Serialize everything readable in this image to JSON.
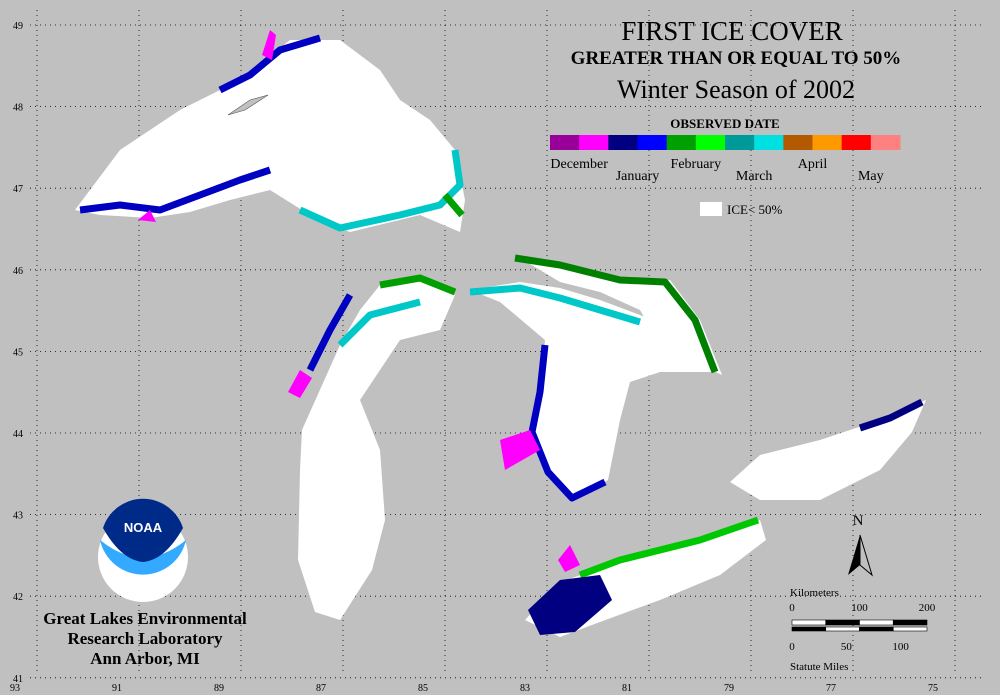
{
  "title": "FIRST ICE COVER",
  "subtitle": "GREATER THAN OR EQUAL TO 50%",
  "season": "Winter Season of 2002",
  "legend": {
    "title": "OBSERVED DATE",
    "months": [
      "December",
      "January",
      "February",
      "March",
      "April",
      "May"
    ],
    "no_ice": "ICE< 50%"
  },
  "latitudes": [
    49,
    48,
    47,
    46,
    45,
    44,
    43,
    42,
    41
  ],
  "longitudes": [
    93,
    91,
    89,
    87,
    85,
    83,
    81,
    79,
    77,
    75
  ],
  "north": "N",
  "scale": {
    "km_label": "Kilometers",
    "km_ticks": [
      0,
      100,
      200
    ],
    "mi_ticks": [
      0,
      50,
      100
    ],
    "mi_label": "Statute Miles"
  },
  "logo": "NOAA",
  "org": [
    "Great Lakes Environmental",
    "Research Laboratory",
    "Ann Arbor, MI"
  ]
}
